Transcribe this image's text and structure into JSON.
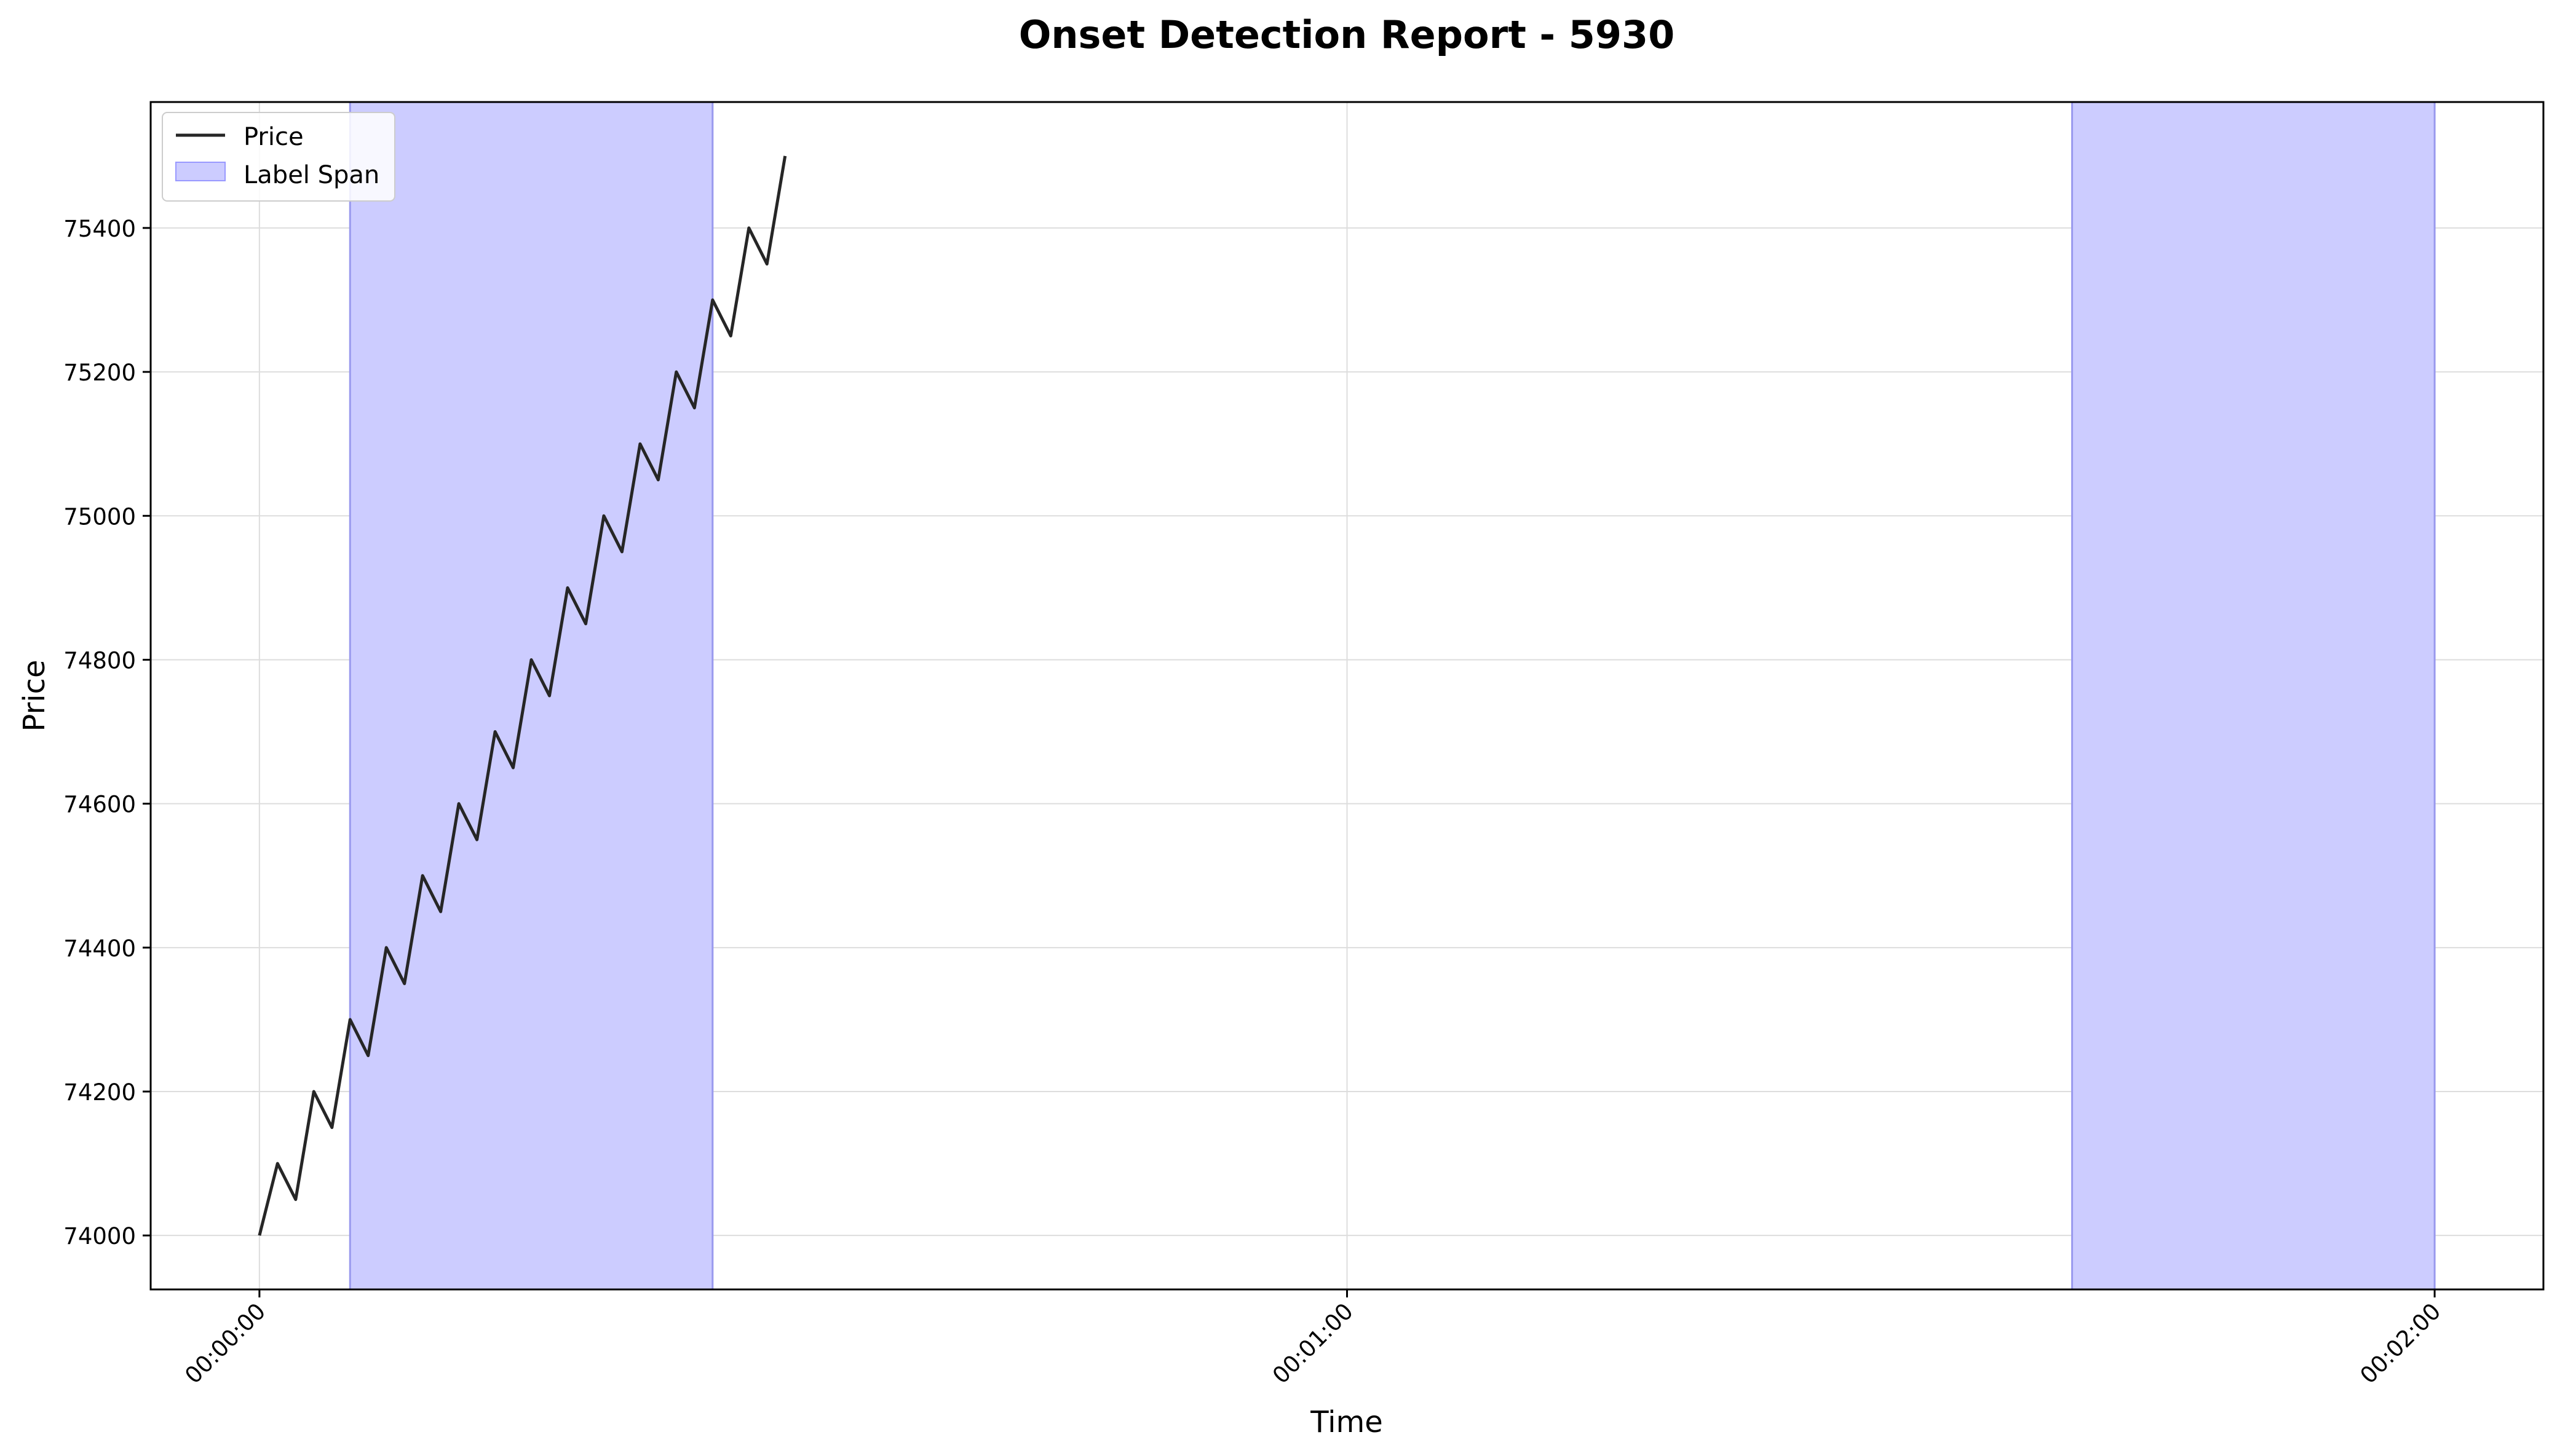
{
  "chart_data": {
    "type": "line",
    "title": "Onset Detection Report - 5930",
    "xlabel": "Time",
    "ylabel": "Price",
    "x_unit": "seconds",
    "x_ticks": [
      {
        "value": 0,
        "label": "00:00:00"
      },
      {
        "value": 60,
        "label": "00:01:00"
      },
      {
        "value": 120,
        "label": "00:02:00"
      }
    ],
    "y_ticks": [
      74000,
      74200,
      74400,
      74600,
      74800,
      75000,
      75200,
      75400
    ],
    "xlim": [
      -6,
      126
    ],
    "ylim": [
      73925,
      75575
    ],
    "grid": true,
    "legend": {
      "position": "top-left",
      "entries": [
        {
          "label": "Price",
          "kind": "line",
          "color": "#262626"
        },
        {
          "label": "Label Span",
          "kind": "patch",
          "color": "#ccccff",
          "edge": "#9999ff"
        }
      ]
    },
    "series": [
      {
        "name": "Price",
        "color": "#262626",
        "x": [
          0,
          1,
          2,
          3,
          4,
          5,
          6,
          7,
          8,
          9,
          10,
          11,
          12,
          13,
          14,
          15,
          16,
          17,
          18,
          19,
          20,
          21,
          22,
          23,
          24,
          25,
          26,
          27,
          28,
          29
        ],
        "y": [
          74000,
          74100,
          74050,
          74200,
          74150,
          74300,
          74250,
          74400,
          74350,
          74500,
          74450,
          74600,
          74550,
          74700,
          74650,
          74800,
          74750,
          74900,
          74850,
          75000,
          74950,
          75100,
          75050,
          75200,
          75150,
          75300,
          75250,
          75400,
          75350,
          75500
        ]
      }
    ],
    "spans": [
      {
        "name": "Label Span",
        "x_start": 5,
        "x_end": 25,
        "color": "#ccccff"
      },
      {
        "name": "Label Span",
        "x_start": 100,
        "x_end": 120,
        "color": "#ccccff"
      }
    ]
  }
}
